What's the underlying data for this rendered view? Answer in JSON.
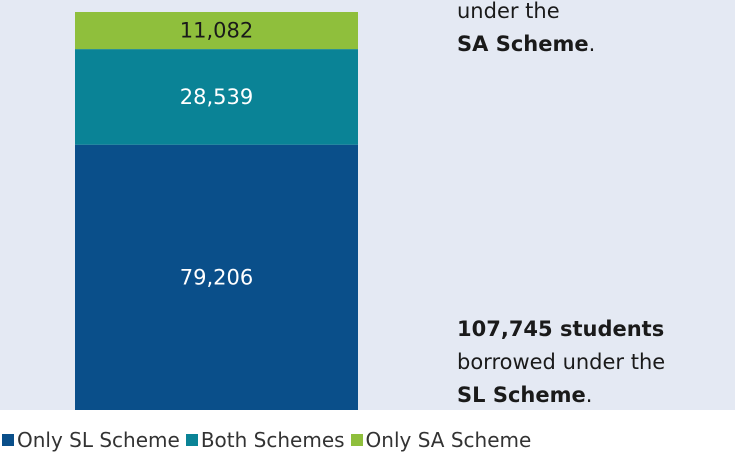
{
  "chart_data": {
    "type": "bar",
    "stacked": true,
    "categories": [
      null
    ],
    "series": [
      {
        "name": "Only SL Scheme",
        "color": "#0a4f8a",
        "label_color": "#ffffff",
        "values": [
          79206
        ],
        "value_labels": [
          "79,206"
        ]
      },
      {
        "name": "Both Schemes",
        "color": "#0a8396",
        "label_color": "#ffffff",
        "values": [
          28539
        ],
        "value_labels": [
          "28,539"
        ]
      },
      {
        "name": "Only SA Scheme",
        "color": "#8fbf3c",
        "label_color": "#1a1a1a",
        "values": [
          11082
        ],
        "value_labels": [
          "11,082"
        ]
      }
    ],
    "annotations": [
      {
        "lines": [
          [
            {
              "text": "under the",
              "bold": false
            }
          ],
          [
            {
              "text": "SA Scheme",
              "bold": true
            },
            {
              "text": ".",
              "bold": false
            }
          ]
        ]
      },
      {
        "lines": [
          [
            {
              "text": "107,745 students",
              "bold": true
            }
          ],
          [
            {
              "text": "borrowed under the",
              "bold": false
            }
          ],
          [
            {
              "text": "SL Scheme",
              "bold": true
            },
            {
              "text": ".",
              "bold": false
            }
          ]
        ]
      }
    ]
  }
}
